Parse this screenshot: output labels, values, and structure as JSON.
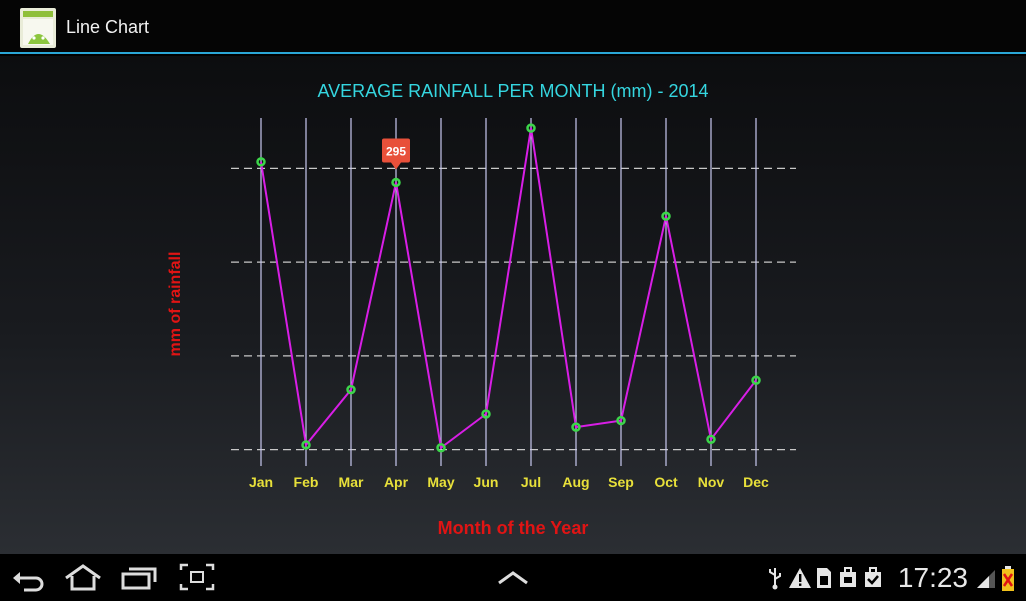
{
  "app": {
    "title": "Line Chart",
    "icon": "android-app-icon"
  },
  "chart_data": {
    "type": "line",
    "title": "AVERAGE RAINFALL PER MONTH (mm) - 2014",
    "xlabel": "Month of the Year",
    "ylabel": "mm of rainfall",
    "categories": [
      "Jan",
      "Feb",
      "Mar",
      "Apr",
      "May",
      "Jun",
      "Jul",
      "Aug",
      "Sep",
      "Oct",
      "Nov",
      "Dec"
    ],
    "series": [
      {
        "values": [
          317,
          15,
          74,
          295,
          12,
          48,
          353,
          34,
          41,
          259,
          21,
          84
        ]
      }
    ],
    "highlight": {
      "index": 3,
      "label": "295"
    },
    "ylim": [
      0,
      400
    ],
    "grid": true,
    "line_color": "#d81ee6",
    "marker_color": "#3cd64a",
    "title_color": "#35d6e0",
    "axis_label_color": "#e01414",
    "tick_label_color": "#e8e03a"
  },
  "status_bar": {
    "time": "17:23",
    "icons": [
      "usb-icon",
      "warning-icon",
      "sd-card-icon",
      "bag-icon",
      "bag-check-icon",
      "signal-icon",
      "battery-icon"
    ]
  },
  "nav": {
    "buttons": [
      "back-button",
      "home-button",
      "recent-apps-button",
      "screenshot-button",
      "menu-up-button"
    ]
  }
}
